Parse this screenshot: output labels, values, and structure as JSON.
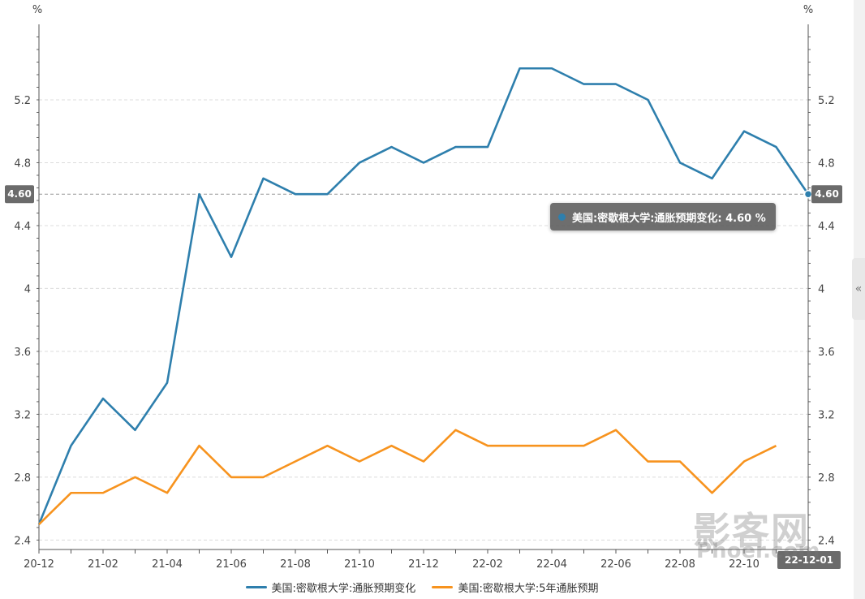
{
  "chart_data": {
    "type": "line",
    "x": [
      "20-12",
      "21-01",
      "21-02",
      "21-03",
      "21-04",
      "21-05",
      "21-06",
      "21-07",
      "21-08",
      "21-09",
      "21-10",
      "21-11",
      "21-12",
      "22-01",
      "22-02",
      "22-03",
      "22-04",
      "22-05",
      "22-06",
      "22-07",
      "22-08",
      "22-09",
      "22-10",
      "22-11",
      "22-12"
    ],
    "x_tick_labels": [
      "20-12",
      "21-02",
      "21-04",
      "21-06",
      "21-08",
      "21-10",
      "21-12",
      "22-02",
      "22-04",
      "22-06",
      "22-08",
      "22-10"
    ],
    "series": [
      {
        "name": "美国:密歇根大学:通胀预期变化",
        "color": "#2e7fad",
        "values": [
          2.5,
          3.0,
          3.3,
          3.1,
          3.4,
          4.6,
          4.2,
          4.7,
          4.6,
          4.6,
          4.8,
          4.9,
          4.8,
          4.9,
          4.9,
          5.4,
          5.4,
          5.3,
          5.3,
          5.2,
          4.8,
          4.7,
          5.0,
          4.9,
          4.6
        ]
      },
      {
        "name": "美国:密歇根大学:5年通胀预期",
        "color": "#f7931e",
        "values": [
          2.5,
          2.7,
          2.7,
          2.8,
          2.7,
          3.0,
          2.8,
          2.8,
          2.9,
          3.0,
          2.9,
          3.0,
          2.9,
          3.1,
          3.0,
          3.0,
          3.0,
          3.0,
          3.1,
          2.9,
          2.9,
          2.7,
          2.9,
          3.0,
          null
        ]
      }
    ],
    "ylim": [
      2.34,
      5.68
    ],
    "y_ticks": [
      2.4,
      2.8,
      3.2,
      3.6,
      4,
      4.4,
      4.8,
      5.2
    ],
    "y_tick_labels": [
      "2.4",
      "2.8",
      "3.2",
      "3.6",
      "4",
      "4.4",
      "4.8",
      "5.2"
    ],
    "y_unit_left": "%",
    "y_unit_right": "%",
    "crosshair_value": 4.6,
    "crosshair_label": "4.60",
    "x_end_badge_label": "22-12-01",
    "grid": true,
    "legend_position": "bottom"
  },
  "tooltip": {
    "text": "美国:密歇根大学:通胀预期变化: 4.60  %",
    "dot_color": "#2e7fad"
  },
  "watermark": {
    "main": "影客网",
    "sub": "Phoer.com"
  },
  "ui": {
    "side_toggle_icon": "«"
  }
}
